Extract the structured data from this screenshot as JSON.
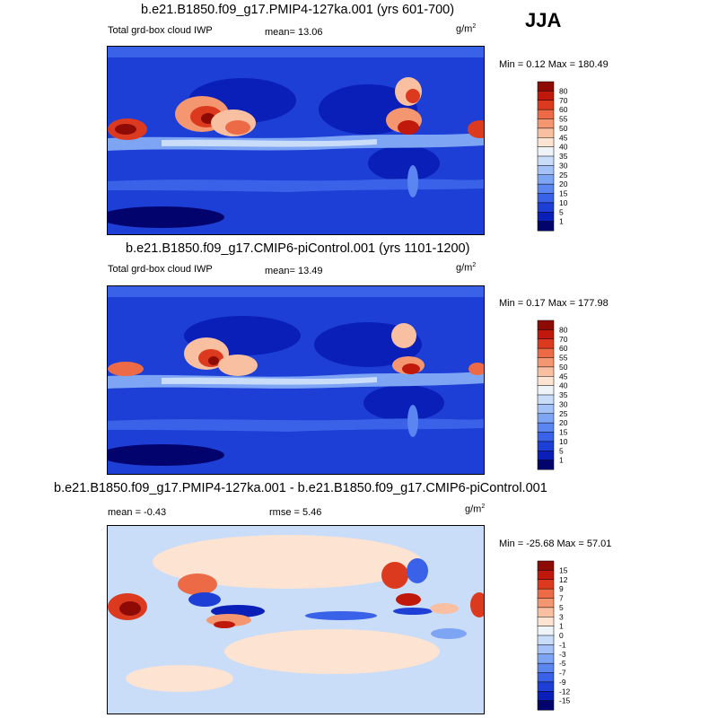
{
  "season": "JJA",
  "panels": [
    {
      "title": "b.e21.B1850.f09_g17.PMIP4-127ka.001 (yrs 601-700)",
      "left_label": "Total grd-box cloud IWP",
      "stat1": "mean=  13.06",
      "stat2": "",
      "units_base": "g/m",
      "units_exp": "2",
      "minmax": "Min =  0.12 Max = 180.49"
    },
    {
      "title": "b.e21.B1850.f09_g17.CMIP6-piControl.001 (yrs 1101-1200)",
      "left_label": "Total grd-box cloud IWP",
      "stat1": "mean=  13.49",
      "stat2": "",
      "units_base": "g/m",
      "units_exp": "2",
      "minmax": "Min =  0.17 Max = 177.98"
    },
    {
      "title": "b.e21.B1850.f09_g17.PMIP4-127ka.001 - b.e21.B1850.f09_g17.CMIP6-piControl.001",
      "left_label": "mean =  -0.43",
      "stat1": "",
      "stat2": "rmse =   5.46",
      "units_base": "g/m",
      "units_exp": "2",
      "minmax": "Min = -25.68 Max =  57.01"
    }
  ],
  "chart_data": [
    {
      "type": "heatmap",
      "title": "b.e21.B1850.f09_g17.PMIP4-127ka.001 (yrs 601-700)",
      "variable": "Total grd-box cloud IWP",
      "units": "g/m2",
      "mean": 13.06,
      "min": 0.12,
      "max": 180.49,
      "contour_levels": [
        1,
        5,
        10,
        15,
        20,
        25,
        30,
        35,
        40,
        45,
        50,
        55,
        60,
        70,
        80
      ],
      "colors": [
        "#03036e",
        "#0a1fb8",
        "#1d3fd6",
        "#3a62e8",
        "#5b85f0",
        "#7ea4f4",
        "#a4c2f7",
        "#c9dcf8",
        "#eef3f8",
        "#fde3d2",
        "#f9bfa1",
        "#f4966f",
        "#ec6a45",
        "#dc3a1e",
        "#c0190c",
        "#8e0a05"
      ]
    },
    {
      "type": "heatmap",
      "title": "b.e21.B1850.f09_g17.CMIP6-piControl.001 (yrs 1101-1200)",
      "variable": "Total grd-box cloud IWP",
      "units": "g/m2",
      "mean": 13.49,
      "min": 0.17,
      "max": 177.98,
      "contour_levels": [
        1,
        5,
        10,
        15,
        20,
        25,
        30,
        35,
        40,
        45,
        50,
        55,
        60,
        70,
        80
      ],
      "colors": [
        "#03036e",
        "#0a1fb8",
        "#1d3fd6",
        "#3a62e8",
        "#5b85f0",
        "#7ea4f4",
        "#a4c2f7",
        "#c9dcf8",
        "#eef3f8",
        "#fde3d2",
        "#f9bfa1",
        "#f4966f",
        "#ec6a45",
        "#dc3a1e",
        "#c0190c",
        "#8e0a05"
      ]
    },
    {
      "type": "heatmap",
      "title": "b.e21.B1850.f09_g17.PMIP4-127ka.001 - b.e21.B1850.f09_g17.CMIP6-piControl.001",
      "units": "g/m2",
      "mean": -0.43,
      "rmse": 5.46,
      "min": -25.68,
      "max": 57.01,
      "contour_levels": [
        -15,
        -12,
        -9,
        -7,
        -5,
        -3,
        -1,
        0,
        1,
        3,
        5,
        7,
        9,
        12,
        15
      ],
      "colors": [
        "#03036e",
        "#0a1fb8",
        "#1d3fd6",
        "#3a62e8",
        "#5b85f0",
        "#7ea4f4",
        "#a4c2f7",
        "#c9dcf8",
        "#eef3f8",
        "#fde3d2",
        "#f9bfa1",
        "#f4966f",
        "#ec6a45",
        "#dc3a1e",
        "#c0190c",
        "#8e0a05"
      ]
    }
  ]
}
